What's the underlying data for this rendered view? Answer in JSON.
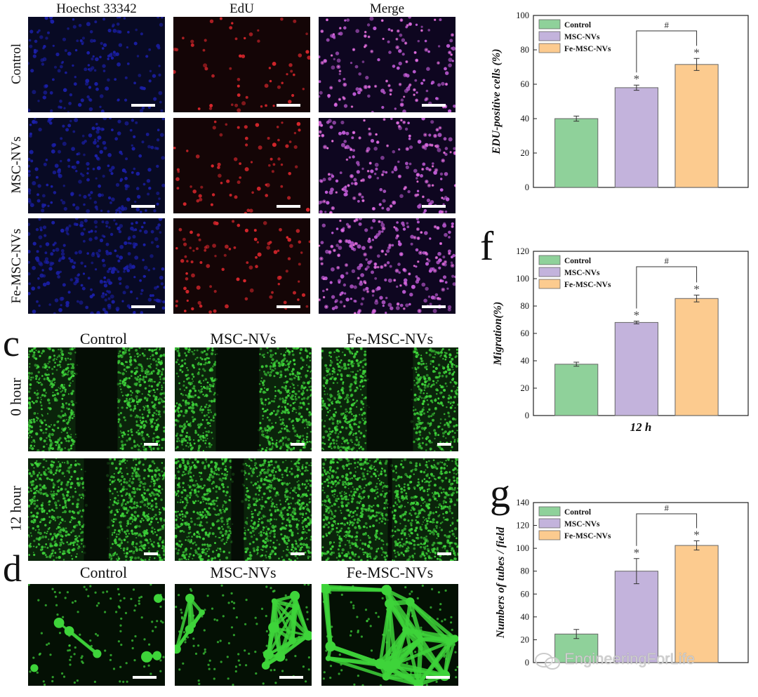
{
  "figure_b": {
    "headers": [
      "Hoechst 33342",
      "EdU",
      "Merge"
    ],
    "rows": [
      "Control",
      "MSC-NVs",
      "Fe-MSC-NVs"
    ]
  },
  "figure_c": {
    "letter": "c",
    "headers": [
      "Control",
      "MSC-NVs",
      "Fe-MSC-NVs"
    ],
    "rows": [
      "0 hour",
      "12 hour"
    ]
  },
  "figure_d": {
    "letter": "d",
    "headers": [
      "Control",
      "MSC-NVs",
      "Fe-MSC-NVs"
    ]
  },
  "colors": {
    "control": "#8fd19a",
    "msc": "#c3b3dc",
    "fe": "#fccb8f",
    "hoechst": "#1b1fa8",
    "edu": "#d8262c",
    "merge": "#c05bd6",
    "calcein": "#3ed43a"
  },
  "watermark": "EngineeringForLife",
  "chart_data": [
    {
      "type": "bar",
      "letter": "",
      "categories": [
        "Control",
        "MSC-NVs",
        "Fe-MSC-NVs"
      ],
      "values": [
        40,
        58,
        71.5
      ],
      "errors": [
        1.5,
        1.5,
        3.5
      ],
      "ylabel": "EDU-positive cells (%)",
      "xlabel": "",
      "ylim": [
        0,
        100
      ],
      "yticks": [
        0,
        20,
        40,
        60,
        80,
        100
      ],
      "legend": [
        "Control",
        "MSC-NVs",
        "Fe-MSC-NVs"
      ],
      "legend_position": "top-left",
      "markers": [
        "",
        "*",
        "*"
      ],
      "bracket": "#"
    },
    {
      "type": "bar",
      "letter": "f",
      "categories": [
        "Control",
        "MSC-NVs",
        "Fe-MSC-NVs"
      ],
      "values": [
        37.5,
        68,
        85.5
      ],
      "errors": [
        1.5,
        1,
        2.5
      ],
      "ylabel": "Migration(%)",
      "xlabel": "12 h",
      "ylim": [
        0,
        120
      ],
      "yticks": [
        0,
        20,
        40,
        60,
        80,
        100,
        120
      ],
      "legend": [
        "Control",
        "MSC-NVs",
        "Fe-MSC-NVs"
      ],
      "legend_position": "top-left",
      "markers": [
        "",
        "*",
        "*"
      ],
      "bracket": "#"
    },
    {
      "type": "bar",
      "letter": "g",
      "categories": [
        "Control",
        "MSC-NVs",
        "Fe-MSC-NVs"
      ],
      "values": [
        25,
        80,
        102.5
      ],
      "errors": [
        4,
        11,
        4
      ],
      "ylabel": "Numbers of tubes / field",
      "xlabel": "",
      "ylim": [
        0,
        140
      ],
      "yticks": [
        0,
        20,
        40,
        60,
        80,
        100,
        120,
        140
      ],
      "legend": [
        "Control",
        "MSC-NVs",
        "Fe-MSC-NVs"
      ],
      "legend_position": "top-left",
      "markers": [
        "",
        "*",
        "*"
      ],
      "bracket": "#"
    }
  ]
}
